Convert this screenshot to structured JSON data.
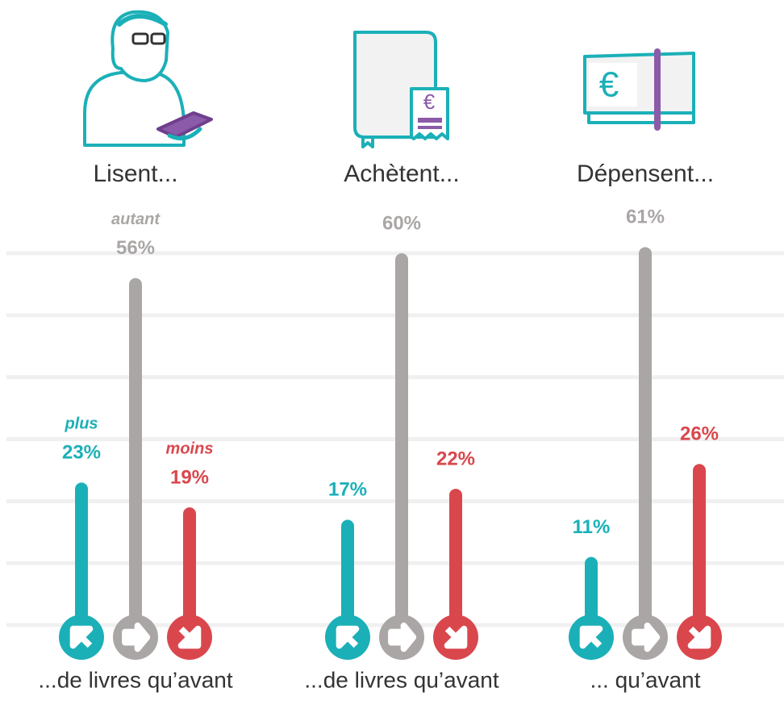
{
  "chart_data": {
    "type": "bar",
    "categories": [
      "Lisent...",
      "Achètent...",
      "Dépensent..."
    ],
    "footers": [
      "...de livres qu’avant",
      "...de livres qu’avant",
      "... qu’avant"
    ],
    "series": [
      {
        "name": "plus",
        "color": "#1bb0b8",
        "values": [
          23,
          17,
          11
        ],
        "value_labels": [
          "23%",
          "17%",
          "11%"
        ]
      },
      {
        "name": "autant",
        "color": "#aaa6a5",
        "values": [
          56,
          60,
          61
        ],
        "value_labels": [
          "56%",
          "60%",
          "61%"
        ]
      },
      {
        "name": "moins",
        "color": "#d9474d",
        "values": [
          19,
          22,
          26
        ],
        "value_labels": [
          "19%",
          "22%",
          "26%"
        ]
      }
    ],
    "ylim": [
      0,
      60
    ],
    "yticks": [
      0,
      10,
      20,
      30,
      40,
      50,
      60
    ],
    "grid": true
  }
}
